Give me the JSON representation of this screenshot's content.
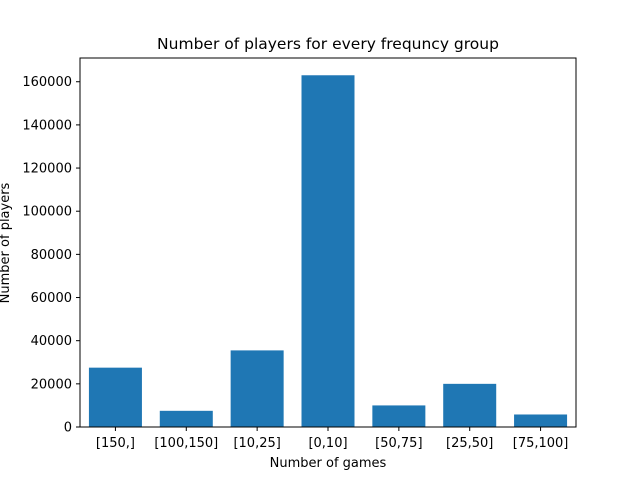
{
  "chart_data": {
    "type": "bar",
    "title": "Number of players for every frequncy group",
    "xlabel": "Number of games",
    "ylabel": "Number of players",
    "categories": [
      "[150,]",
      "[100,150]",
      "[10,25]",
      "[0,10]",
      "[50,75]",
      "[25,50]",
      "[75,100]"
    ],
    "values": [
      27500,
      7500,
      35500,
      163000,
      10000,
      20000,
      5800
    ],
    "ylim": [
      0,
      171000
    ],
    "yticks": [
      0,
      20000,
      40000,
      60000,
      80000,
      100000,
      120000,
      140000,
      160000
    ],
    "bar_color": "#1f77b4",
    "grid": false,
    "legend": "none"
  }
}
